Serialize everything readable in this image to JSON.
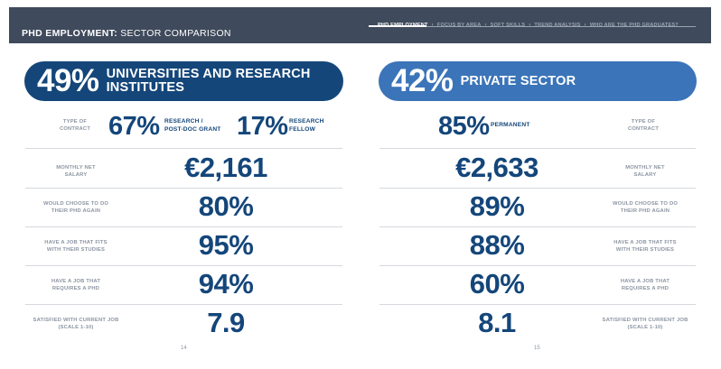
{
  "header": {
    "title_bold": "PHD EMPLOYMENT:",
    "title_rest": " SECTOR COMPARISON",
    "nav": [
      "PHD EMPLOYMENT",
      "FOCUS BY AREA",
      "SOFT SKILLS",
      "TREND ANALYSIS",
      "WHO ARE THE PHD GRADUATES?"
    ],
    "nav_sep": "›"
  },
  "left": {
    "banner_pct": "49%",
    "banner_label_1": "UNIVERSITIES AND RESEARCH",
    "banner_label_2": "INSTITUTES",
    "contract": {
      "label_1": "TYPE OF",
      "label_2": "CONTRACT",
      "v1": "67%",
      "v1_l1": "RESEARCH /",
      "v1_l2": "POST-DOC GRANT",
      "v2": "17%",
      "v2_l1": "RESEARCH",
      "v2_l2": "FELLOW"
    },
    "rows": [
      {
        "l1": "MONTHLY NET",
        "l2": "SALARY",
        "value": "€2,161"
      },
      {
        "l1": "WOULD CHOOSE TO DO",
        "l2": "THEIR PHD AGAIN",
        "value": "80%"
      },
      {
        "l1": "HAVE A JOB THAT FITS",
        "l2": "WITH THEIR STUDIES",
        "value": "95%"
      },
      {
        "l1": "HAVE A JOB THAT",
        "l2": "REQUIRES A PHD",
        "value": "94%"
      },
      {
        "l1": "SATISFIED WITH CURRENT JOB",
        "l2": "(SCALE 1-10)",
        "value": "7.9"
      }
    ],
    "page": "14"
  },
  "right": {
    "banner_pct": "42%",
    "banner_label": "PRIVATE SECTOR",
    "contract": {
      "label_1": "TYPE OF",
      "label_2": "CONTRACT",
      "v1": "85%",
      "v1_l1": "PERMANENT"
    },
    "rows": [
      {
        "l1": "MONTHLY NET",
        "l2": "SALARY",
        "value": "€2,633"
      },
      {
        "l1": "WOULD CHOOSE TO DO",
        "l2": "THEIR PHD AGAIN",
        "value": "89%"
      },
      {
        "l1": "HAVE A JOB THAT FITS",
        "l2": "WITH THEIR STUDIES",
        "value": "88%"
      },
      {
        "l1": "HAVE A JOB THAT",
        "l2": "REQUIRES A PHD",
        "value": "60%"
      },
      {
        "l1": "SATISFIED WITH CURRENT JOB",
        "l2": "(SCALE 1-10)",
        "value": "8.1"
      }
    ],
    "page": "15"
  }
}
